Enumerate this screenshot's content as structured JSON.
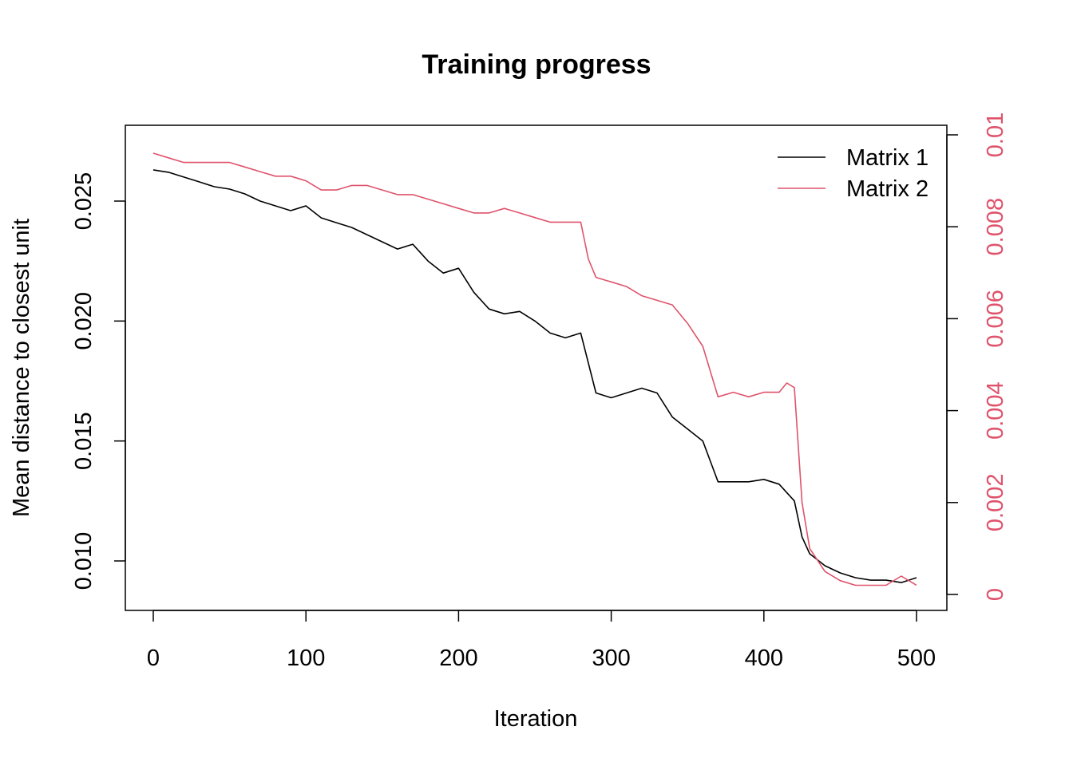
{
  "chart_data": {
    "type": "line",
    "title": "Training progress",
    "xlabel": "Iteration",
    "ylabel": "Mean distance to closest unit",
    "xlim": [
      0,
      500
    ],
    "ylim_left": [
      0.0085,
      0.0275
    ],
    "ylim_right": [
      0,
      0.01
    ],
    "x_ticks": [
      "0",
      "100",
      "200",
      "300",
      "400",
      "500"
    ],
    "y_ticks_left": [
      "0.010",
      "0.015",
      "0.020",
      "0.025"
    ],
    "y_ticks_right": [
      "0",
      "0.002",
      "0.004",
      "0.006",
      "0.008",
      "0.01"
    ],
    "grid": false,
    "legend_position": "top-right",
    "colors": {
      "series1": "#000000",
      "series2": "#DF536B"
    },
    "series": [
      {
        "name": "Matrix 1",
        "axis": "left",
        "x": [
          0,
          10,
          20,
          30,
          40,
          50,
          60,
          70,
          80,
          90,
          100,
          110,
          120,
          130,
          140,
          150,
          160,
          170,
          180,
          190,
          200,
          210,
          220,
          230,
          240,
          250,
          260,
          270,
          280,
          290,
          300,
          310,
          320,
          330,
          340,
          350,
          360,
          370,
          380,
          390,
          400,
          410,
          420,
          425,
          430,
          440,
          450,
          460,
          470,
          480,
          490,
          500
        ],
        "y": [
          0.0263,
          0.0262,
          0.026,
          0.0258,
          0.0256,
          0.0255,
          0.0253,
          0.025,
          0.0248,
          0.0246,
          0.0248,
          0.0243,
          0.0241,
          0.0239,
          0.0236,
          0.0233,
          0.023,
          0.0232,
          0.0225,
          0.022,
          0.0222,
          0.0212,
          0.0205,
          0.0203,
          0.0204,
          0.02,
          0.0195,
          0.0193,
          0.0195,
          0.017,
          0.0168,
          0.017,
          0.0172,
          0.017,
          0.016,
          0.0155,
          0.015,
          0.0133,
          0.0133,
          0.0133,
          0.0134,
          0.0132,
          0.0125,
          0.011,
          0.0103,
          0.0098,
          0.0095,
          0.0093,
          0.0092,
          0.0092,
          0.0091,
          0.0093
        ]
      },
      {
        "name": "Matrix 2",
        "axis": "right",
        "x": [
          0,
          10,
          20,
          30,
          40,
          50,
          60,
          70,
          80,
          90,
          100,
          110,
          120,
          130,
          140,
          150,
          160,
          170,
          180,
          190,
          200,
          210,
          220,
          230,
          240,
          250,
          260,
          270,
          280,
          285,
          290,
          300,
          310,
          320,
          330,
          340,
          350,
          360,
          370,
          380,
          390,
          400,
          410,
          415,
          420,
          425,
          430,
          440,
          450,
          460,
          470,
          480,
          490,
          500
        ],
        "y": [
          0.0096,
          0.0095,
          0.0094,
          0.0094,
          0.0094,
          0.0094,
          0.0093,
          0.0092,
          0.0091,
          0.0091,
          0.009,
          0.0088,
          0.0088,
          0.0089,
          0.0089,
          0.0088,
          0.0087,
          0.0087,
          0.0086,
          0.0085,
          0.0084,
          0.0083,
          0.0083,
          0.0084,
          0.0083,
          0.0082,
          0.0081,
          0.0081,
          0.0081,
          0.0073,
          0.0069,
          0.0068,
          0.0067,
          0.0065,
          0.0064,
          0.0063,
          0.0059,
          0.0054,
          0.0043,
          0.0044,
          0.0043,
          0.0044,
          0.0044,
          0.0046,
          0.0045,
          0.002,
          0.001,
          0.0005,
          0.0003,
          0.0002,
          0.0002,
          0.0002,
          0.0004,
          0.0002
        ]
      }
    ]
  }
}
